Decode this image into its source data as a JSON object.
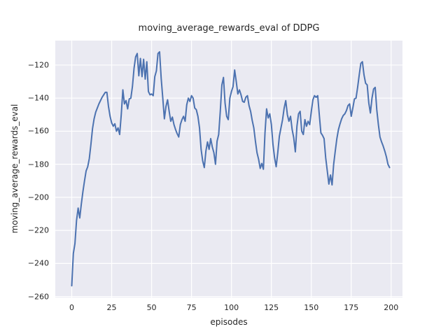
{
  "chart_data": {
    "type": "line",
    "title": "moving_average_rewards_eval of DDPG",
    "xlabel": "episodes",
    "ylabel": "moving_average_rewards_eval",
    "x_ticks": [
      0,
      25,
      50,
      75,
      100,
      125,
      150,
      175,
      200
    ],
    "y_ticks": [
      -120,
      -140,
      -160,
      -180,
      -200,
      -220,
      -240,
      -260
    ],
    "xlim": [
      -10.3,
      207.1
    ],
    "ylim": [
      -260.6,
      -105.2
    ],
    "grid": true,
    "legend": false,
    "style": {
      "line_color": "#4C72B0",
      "axes_bg": "#EAEAF2",
      "grid_color": "#FFFFFF",
      "text_color": "#262626",
      "fig_bg": "#FFFFFF"
    },
    "series": [
      {
        "name": "moving_average_rewards_eval",
        "x_is_index": true,
        "x_start": 0,
        "x_step": 1,
        "y": [
          -253.5,
          -234,
          -228,
          -214,
          -206.5,
          -212.5,
          -204,
          -196.5,
          -190,
          -184,
          -181.5,
          -176.5,
          -168,
          -158.5,
          -152.5,
          -148.5,
          -146,
          -143.5,
          -141.5,
          -139.5,
          -138,
          -136.5,
          -136.5,
          -145,
          -151,
          -155,
          -157,
          -155.5,
          -160,
          -158,
          -162,
          -150,
          -135,
          -143.5,
          -141.5,
          -146.5,
          -140.5,
          -140,
          -133,
          -122,
          -115,
          -113,
          -126.5,
          -116,
          -127,
          -116.5,
          -128.5,
          -118,
          -136,
          -138,
          -137.5,
          -138.5,
          -127,
          -123.5,
          -113,
          -112,
          -128,
          -140,
          -152.5,
          -145,
          -141,
          -148,
          -154,
          -151.5,
          -156,
          -159,
          -161.5,
          -163.5,
          -156,
          -153,
          -151,
          -154,
          -144,
          -140,
          -142,
          -138.5,
          -140,
          -146,
          -147,
          -151,
          -158,
          -171,
          -178,
          -182,
          -172,
          -166.5,
          -171,
          -164.5,
          -169.5,
          -173,
          -180,
          -166,
          -162,
          -148,
          -132,
          -127.5,
          -143,
          -151,
          -153,
          -140,
          -136,
          -133,
          -123,
          -130,
          -137.5,
          -135,
          -138,
          -142,
          -142.5,
          -139.5,
          -138.5,
          -144.5,
          -148,
          -153.5,
          -158,
          -166,
          -173,
          -177,
          -182.5,
          -179.5,
          -183,
          -161,
          -146.5,
          -152,
          -149.5,
          -156,
          -168,
          -176,
          -181.5,
          -173,
          -163,
          -158,
          -153,
          -146,
          -141.5,
          -150,
          -154,
          -151,
          -159,
          -164,
          -172.5,
          -157,
          -149.5,
          -148,
          -160,
          -162,
          -153,
          -157,
          -154,
          -156,
          -148,
          -141,
          -138.5,
          -139.5,
          -138.5,
          -150,
          -161,
          -162.5,
          -164.5,
          -176,
          -184,
          -192,
          -186.5,
          -192.5,
          -180,
          -172,
          -164.5,
          -159,
          -155.5,
          -152.5,
          -150.5,
          -149.5,
          -147.5,
          -144.5,
          -143.5,
          -151,
          -146,
          -140.5,
          -140,
          -133.5,
          -126,
          -119,
          -118,
          -126,
          -131,
          -132,
          -143,
          -149,
          -140,
          -134.5,
          -133.5,
          -147,
          -156,
          -163.5,
          -166.5,
          -169,
          -172,
          -175.5,
          -180,
          -182
        ]
      }
    ]
  }
}
